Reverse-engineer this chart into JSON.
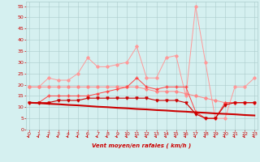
{
  "x": [
    0,
    1,
    2,
    3,
    4,
    5,
    6,
    7,
    8,
    9,
    10,
    11,
    12,
    13,
    14,
    15,
    16,
    17,
    18,
    19,
    20,
    21,
    22,
    23
  ],
  "series": [
    {
      "color": "#FF9999",
      "lw": 0.7,
      "marker": "D",
      "ms": 1.8,
      "values": [
        19,
        19,
        23,
        22,
        22,
        25,
        32,
        28,
        28,
        29,
        30,
        37,
        23,
        23,
        32,
        33,
        15,
        55,
        30,
        5,
        5,
        19,
        19,
        23
      ]
    },
    {
      "color": "#FF8888",
      "lw": 0.7,
      "marker": "D",
      "ms": 1.8,
      "values": [
        19,
        19,
        19,
        19,
        19,
        19,
        19,
        19,
        19,
        19,
        19,
        19,
        18,
        17,
        17,
        17,
        16,
        15,
        14,
        13,
        12,
        12,
        12,
        12
      ]
    },
    {
      "color": "#FF4444",
      "lw": 0.7,
      "marker": "+",
      "ms": 2.5,
      "values": [
        12,
        12,
        15,
        15,
        15,
        15,
        15,
        16,
        17,
        18,
        19,
        23,
        19,
        18,
        19,
        19,
        19,
        8,
        5,
        5,
        12,
        12,
        12,
        12
      ]
    },
    {
      "color": "#CC0000",
      "lw": 0.8,
      "marker": "v",
      "ms": 2.2,
      "values": [
        12,
        12,
        12,
        13,
        13,
        13,
        14,
        14,
        14,
        14,
        14,
        14,
        14,
        13,
        13,
        13,
        12,
        7,
        5,
        5,
        11,
        12,
        12,
        12
      ]
    },
    {
      "color": "#CC0000",
      "lw": 1.5,
      "marker": null,
      "ms": 0,
      "values": [
        12,
        11.8,
        11.5,
        11.3,
        11.0,
        10.8,
        10.5,
        10.2,
        10.0,
        9.7,
        9.5,
        9.2,
        9.0,
        8.7,
        8.5,
        8.2,
        8.0,
        7.7,
        7.5,
        7.2,
        7.0,
        6.8,
        6.5,
        6.3
      ]
    }
  ],
  "xlabel": "Vent moyen/en rafales ( km/h )",
  "yticks": [
    0,
    5,
    10,
    15,
    20,
    25,
    30,
    35,
    40,
    45,
    50,
    55
  ],
  "xticks": [
    0,
    1,
    2,
    3,
    4,
    5,
    6,
    7,
    8,
    9,
    10,
    11,
    12,
    13,
    14,
    15,
    16,
    17,
    18,
    19,
    20,
    21,
    22,
    23
  ],
  "xlim": [
    -0.3,
    23.3
  ],
  "ylim": [
    0,
    57
  ],
  "bg_color": "#D5F0F0",
  "grid_color": "#AACCCC",
  "tick_color": "#CC0000",
  "label_color": "#CC0000",
  "arrow_color": "#CC0000"
}
